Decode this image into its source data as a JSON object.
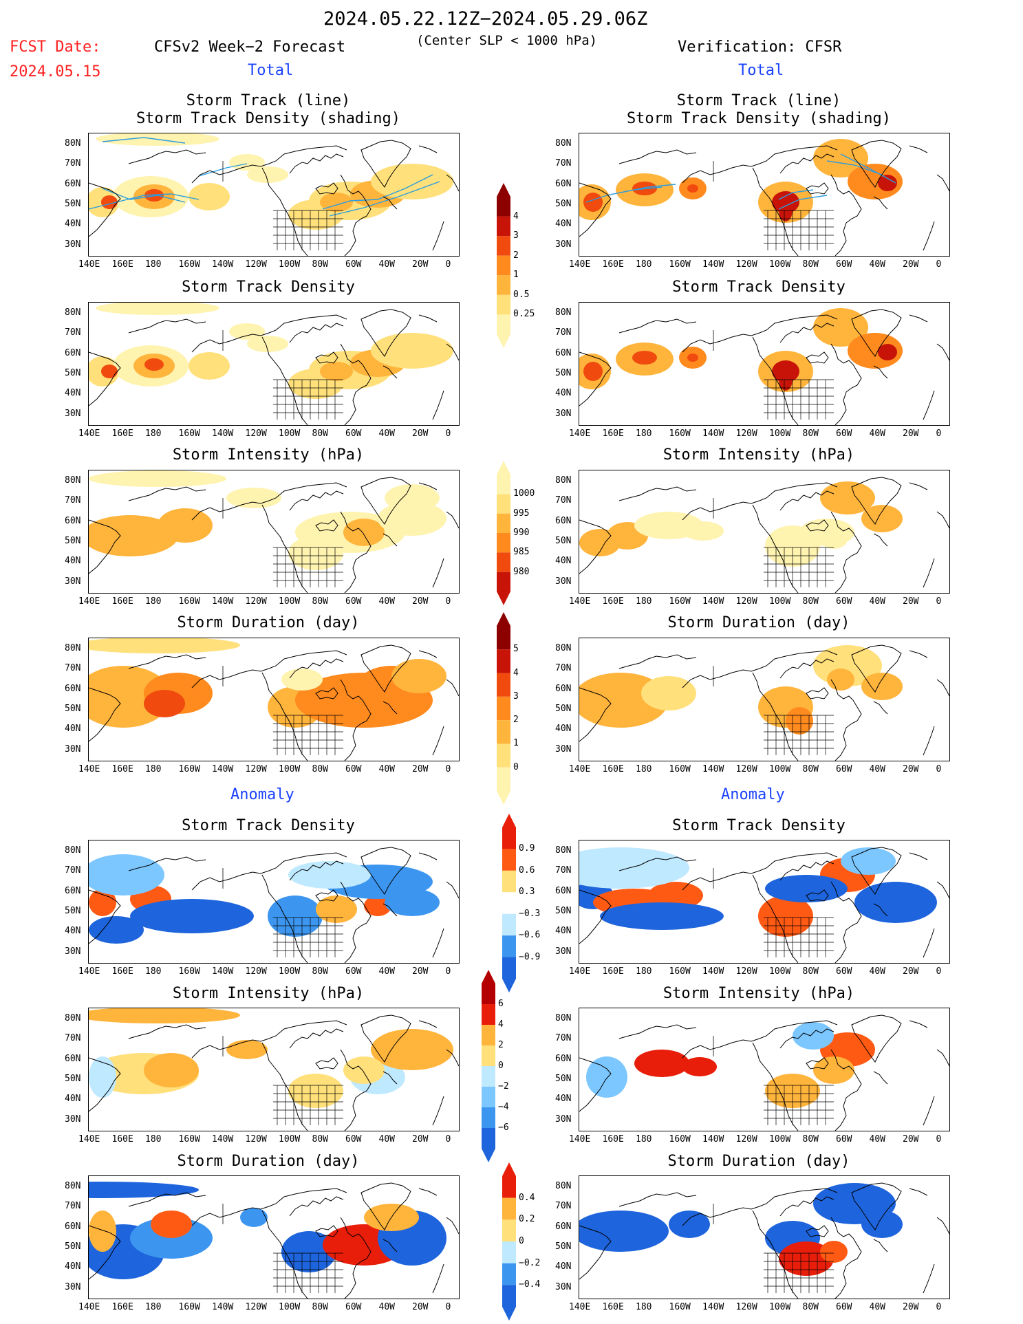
{
  "header": {
    "date_range": "2024.05.22.12Z−2024.05.29.06Z",
    "fcst_label": "FCST Date:",
    "fcst_date": "2024.05.15",
    "forecast_label": "CFSv2 Week−2 Forecast",
    "subtitle": "(Center SLP < 1000 hPa)",
    "verification_label": "Verification: CFSR",
    "total_left": "Total",
    "total_right": "Total",
    "anomaly_left": "Anomaly",
    "anomaly_right": "Anomaly"
  },
  "panel_titles": {
    "track_line": "Storm Track (line)",
    "track_density_shading": "Storm Track Density (shading)",
    "track_density": "Storm Track Density",
    "intensity": "Storm Intensity (hPa)",
    "duration": "Storm Duration (day)"
  },
  "axes": {
    "lat": [
      "80N",
      "70N",
      "60N",
      "50N",
      "40N",
      "30N"
    ],
    "lon": [
      "140E",
      "160E",
      "180",
      "160W",
      "140W",
      "120W",
      "100W",
      "80W",
      "60W",
      "40W",
      "20W",
      "0"
    ]
  },
  "colorbars": {
    "density": [
      "4",
      "3",
      "2",
      "1",
      "0.5",
      "0.25"
    ],
    "intensity": [
      "1000",
      "995",
      "990",
      "985",
      "980"
    ],
    "duration": [
      "5",
      "4",
      "3",
      "2",
      "1",
      "0"
    ],
    "density_anom": [
      "0.9",
      "0.6",
      "0.3",
      "−0.3",
      "−0.6",
      "−0.9"
    ],
    "intensity_anom": [
      "6",
      "4",
      "2",
      "0",
      "−2",
      "−4",
      "−6"
    ],
    "duration_anom": [
      "0.4",
      "0.2",
      "0",
      "−0.2",
      "−0.4"
    ]
  },
  "colors": {
    "warm": [
      "#fff3b0",
      "#ffe07a",
      "#ffb43c",
      "#ff8a1e",
      "#f04a0e",
      "#c81408",
      "#8c0000"
    ],
    "anom_pos": [
      "#ffe07a",
      "#ffb43c",
      "#ff5a14",
      "#e81e0a",
      "#b40000"
    ],
    "anom_neg": [
      "#bfe9ff",
      "#7cc7ff",
      "#3c96f0",
      "#1e64dc",
      "#1446b4"
    ],
    "track_line": "#2a9de0"
  }
}
